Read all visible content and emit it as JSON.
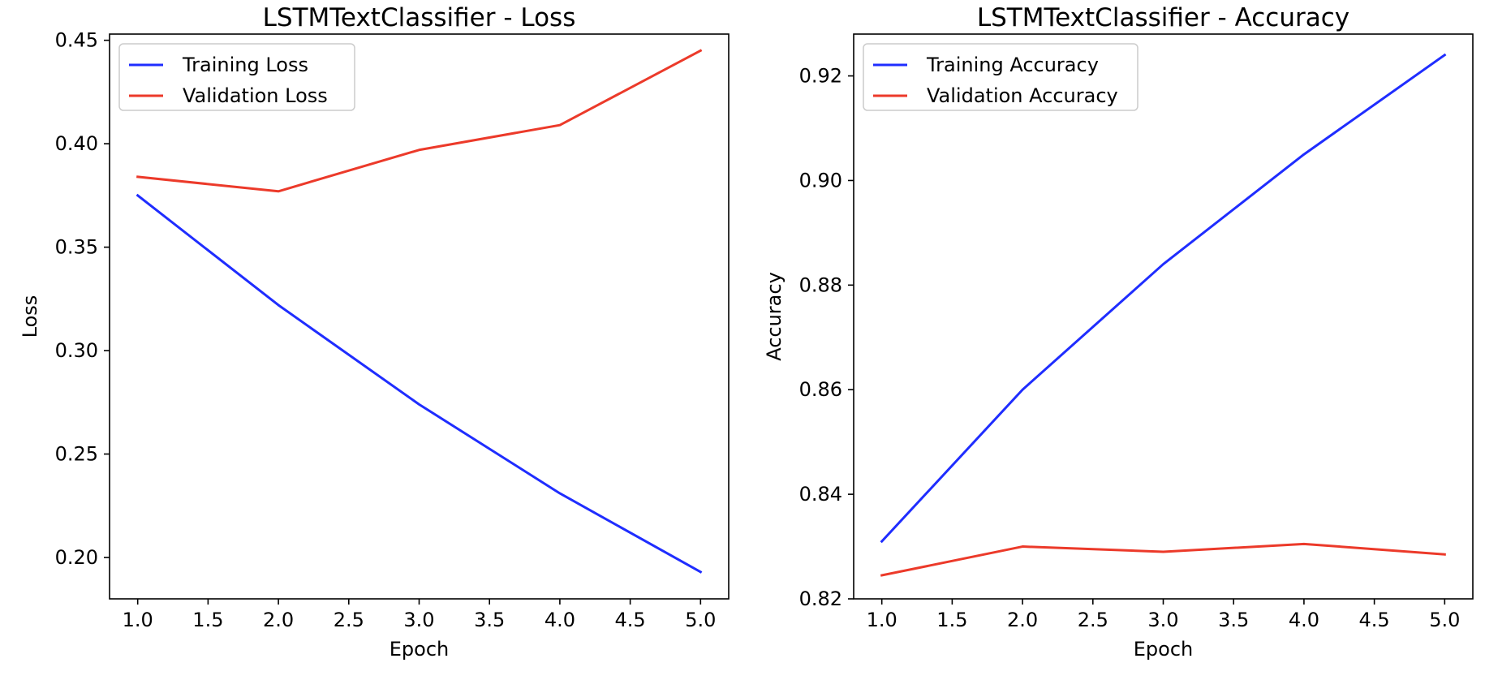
{
  "chart_data": [
    {
      "type": "line",
      "title": "LSTMTextClassifier - Loss",
      "xlabel": "Epoch",
      "ylabel": "Loss",
      "x": [
        1,
        2,
        3,
        4,
        5
      ],
      "xlim": [
        0.8,
        5.2
      ],
      "ylim": [
        0.18,
        0.453
      ],
      "xticks": [
        1.0,
        1.5,
        2.0,
        2.5,
        3.0,
        3.5,
        4.0,
        4.5,
        5.0
      ],
      "xtick_labels": [
        "1.0",
        "1.5",
        "2.0",
        "2.5",
        "3.0",
        "3.5",
        "4.0",
        "4.5",
        "5.0"
      ],
      "yticks": [
        0.2,
        0.25,
        0.3,
        0.35,
        0.4,
        0.45
      ],
      "ytick_labels": [
        "0.20",
        "0.25",
        "0.30",
        "0.35",
        "0.40",
        "0.45"
      ],
      "grid": false,
      "legend_position": "top-left",
      "series": [
        {
          "name": "Training Loss",
          "color": "#1f2dff",
          "values": [
            0.375,
            0.322,
            0.274,
            0.231,
            0.193
          ]
        },
        {
          "name": "Validation Loss",
          "color": "#ec3a2a",
          "values": [
            0.384,
            0.377,
            0.397,
            0.409,
            0.445
          ]
        }
      ]
    },
    {
      "type": "line",
      "title": "LSTMTextClassifier - Accuracy",
      "xlabel": "Epoch",
      "ylabel": "Accuracy",
      "x": [
        1,
        2,
        3,
        4,
        5
      ],
      "xlim": [
        0.8,
        5.2
      ],
      "ylim": [
        0.82,
        0.928
      ],
      "xticks": [
        1.0,
        1.5,
        2.0,
        2.5,
        3.0,
        3.5,
        4.0,
        4.5,
        5.0
      ],
      "xtick_labels": [
        "1.0",
        "1.5",
        "2.0",
        "2.5",
        "3.0",
        "3.5",
        "4.0",
        "4.5",
        "5.0"
      ],
      "yticks": [
        0.82,
        0.84,
        0.86,
        0.88,
        0.9,
        0.92
      ],
      "ytick_labels": [
        "0.82",
        "0.84",
        "0.86",
        "0.88",
        "0.90",
        "0.92"
      ],
      "grid": false,
      "legend_position": "top-left",
      "series": [
        {
          "name": "Training Accuracy",
          "color": "#1f2dff",
          "values": [
            0.831,
            0.86,
            0.884,
            0.905,
            0.924
          ]
        },
        {
          "name": "Validation Accuracy",
          "color": "#ec3a2a",
          "values": [
            0.8245,
            0.83,
            0.829,
            0.8305,
            0.8285
          ]
        }
      ]
    }
  ]
}
